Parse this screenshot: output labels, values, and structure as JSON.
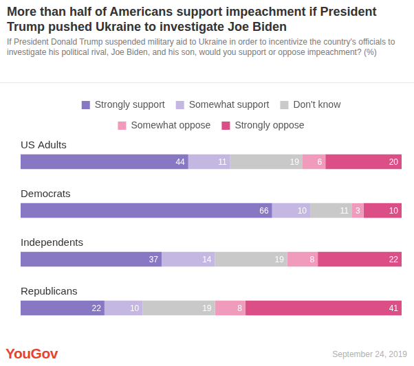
{
  "chart_data": {
    "type": "bar",
    "orientation": "horizontal",
    "stacked": true,
    "title": "More than half of Americans support impeachment if President Trump pushed Ukraine to investigate Joe Biden",
    "subtitle": "If President Donald Trump suspended military aid to Ukraine in order to incentivize the country's officials to investigate his political rival, Joe Biden, and his son, would you support or oppose impeachment? (%)",
    "categories": [
      "US Adults",
      "Democrats",
      "Independents",
      "Republicans"
    ],
    "series": [
      {
        "name": "Strongly support",
        "color": "#8878c3",
        "values": [
          44,
          66,
          37,
          22
        ]
      },
      {
        "name": "Somewhat support",
        "color": "#c4b8e3",
        "values": [
          11,
          10,
          14,
          10
        ]
      },
      {
        "name": "Don't know",
        "color": "#c9c9c9",
        "values": [
          19,
          11,
          19,
          19
        ]
      },
      {
        "name": "Somewhat oppose",
        "color": "#f09bbb",
        "values": [
          6,
          3,
          8,
          8
        ]
      },
      {
        "name": "Strongly oppose",
        "color": "#db4f86",
        "values": [
          20,
          10,
          22,
          41
        ]
      }
    ],
    "xlim": [
      0,
      100
    ],
    "grid": false,
    "legend": "top",
    "data_labels": true,
    "tick_labels": false,
    "annotations": [
      "YouGov",
      "September 24, 2019"
    ]
  }
}
